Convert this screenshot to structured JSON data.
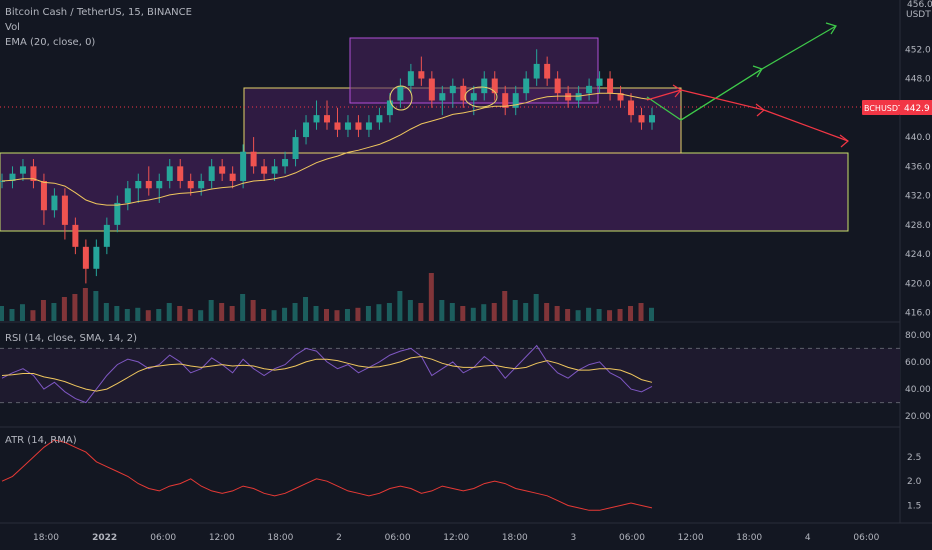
{
  "legend": {
    "symbol_line": "Bitcoin Cash / TetherUS, 15, BINANCE",
    "vol_label": "Vol",
    "ema_label": "EMA (20, close, 0)"
  },
  "price_axis": {
    "currency": "USDT",
    "ticks": [
      "452.0",
      "448.0",
      "444.0",
      "440.0",
      "436.0",
      "432.0",
      "428.0",
      "424.0",
      "420.0",
      "416.0"
    ],
    "top_partial": "456.0"
  },
  "price_badge": {
    "symbol": "BCHUSDT",
    "value": "442.9"
  },
  "rsi": {
    "title": "RSI (14, close, SMA, 14, 2)",
    "ticks": [
      "80.00",
      "60.00",
      "40.00",
      "20.00"
    ],
    "upper_band": 70,
    "lower_band": 30
  },
  "atr": {
    "title": "ATR (14, RMA)",
    "ticks": [
      "2.5",
      "2.0",
      "1.5"
    ]
  },
  "time_axis": {
    "labels": [
      "18:00",
      "2022",
      "06:00",
      "12:00",
      "18:00",
      "2",
      "06:00",
      "12:00",
      "18:00",
      "3",
      "06:00",
      "12:00",
      "18:00",
      "4",
      "06:00"
    ]
  },
  "colors": {
    "background": "#131722",
    "up": "#26a69a",
    "down": "#ef5350",
    "ema": "#f0c75e",
    "rsi": "#7e57c2",
    "rsi_ma": "#f0c75e",
    "atr": "#e53935",
    "zone_fill": "#3a1d4d",
    "zone_border": "#c8e06a",
    "range_border": "#b04fd6",
    "arrow_up": "#3ec94a",
    "arrow_down": "#f23645",
    "badge": "#f23645"
  },
  "chart_data": {
    "type": "candlestick",
    "x_range": [
      "2022-01-01 15:00",
      "2022-01-04 07:00"
    ],
    "y_range": [
      415,
      456
    ],
    "candles": [
      [
        434,
        435,
        433,
        434
      ],
      [
        434,
        436,
        433,
        435
      ],
      [
        435,
        437,
        434,
        436
      ],
      [
        436,
        437,
        433,
        434
      ],
      [
        434,
        435,
        428,
        430
      ],
      [
        430,
        433,
        429,
        432
      ],
      [
        432,
        433,
        426,
        428
      ],
      [
        428,
        429,
        424,
        425
      ],
      [
        425,
        426,
        420,
        422
      ],
      [
        422,
        426,
        421,
        425
      ],
      [
        425,
        429,
        424,
        428
      ],
      [
        428,
        432,
        427,
        431
      ],
      [
        431,
        434,
        430,
        433
      ],
      [
        433,
        435,
        431,
        434
      ],
      [
        434,
        436,
        432,
        433
      ],
      [
        433,
        435,
        431,
        434
      ],
      [
        434,
        437,
        433,
        436
      ],
      [
        436,
        437,
        433,
        434
      ],
      [
        434,
        435,
        432,
        433
      ],
      [
        433,
        435,
        432,
        434
      ],
      [
        434,
        437,
        433,
        436
      ],
      [
        436,
        437,
        434,
        435
      ],
      [
        435,
        436,
        433,
        434
      ],
      [
        434,
        439,
        433,
        438
      ],
      [
        438,
        440,
        435,
        436
      ],
      [
        436,
        437,
        434,
        435
      ],
      [
        435,
        437,
        434,
        436
      ],
      [
        436,
        438,
        435,
        437
      ],
      [
        437,
        441,
        436,
        440
      ],
      [
        440,
        443,
        439,
        442
      ],
      [
        442,
        445,
        441,
        443
      ],
      [
        443,
        445,
        441,
        442
      ],
      [
        442,
        444,
        440,
        441
      ],
      [
        441,
        443,
        440,
        442
      ],
      [
        442,
        443,
        440,
        441
      ],
      [
        441,
        443,
        440,
        442
      ],
      [
        442,
        444,
        441,
        443
      ],
      [
        443,
        446,
        442,
        445
      ],
      [
        445,
        448,
        444,
        447
      ],
      [
        447,
        450,
        446,
        449
      ],
      [
        449,
        451,
        447,
        448
      ],
      [
        448,
        449,
        444,
        445
      ],
      [
        445,
        447,
        443,
        446
      ],
      [
        446,
        448,
        444,
        447
      ],
      [
        447,
        448,
        444,
        445
      ],
      [
        445,
        447,
        443,
        446
      ],
      [
        446,
        449,
        445,
        448
      ],
      [
        448,
        449,
        445,
        446
      ],
      [
        446,
        447,
        443,
        444
      ],
      [
        444,
        447,
        443,
        446
      ],
      [
        446,
        449,
        445,
        448
      ],
      [
        448,
        452,
        447,
        450
      ],
      [
        450,
        451,
        447,
        448
      ],
      [
        448,
        449,
        445,
        446
      ],
      [
        446,
        447,
        444,
        445
      ],
      [
        445,
        447,
        444,
        446
      ],
      [
        446,
        448,
        445,
        447
      ],
      [
        447,
        449,
        446,
        448
      ],
      [
        448,
        449,
        445,
        446
      ],
      [
        446,
        447,
        444,
        445
      ],
      [
        445,
        446,
        442,
        443
      ],
      [
        443,
        444,
        441,
        442
      ],
      [
        442,
        444,
        441,
        443
      ]
    ],
    "ema": [
      434,
      434.1,
      434.3,
      434.3,
      433.8,
      433.7,
      433.3,
      432.4,
      431.4,
      430.9,
      430.7,
      430.7,
      430.9,
      431.2,
      431.4,
      431.7,
      432.1,
      432.3,
      432.4,
      432.6,
      432.9,
      433.1,
      433.2,
      433.7,
      434,
      434.1,
      434.3,
      434.6,
      435.1,
      435.8,
      436.5,
      437,
      437.4,
      437.9,
      438.2,
      438.6,
      439,
      439.6,
      440.3,
      441.1,
      441.8,
      442.2,
      442.6,
      443.1,
      443.3,
      443.6,
      444,
      444.2,
      444.2,
      444.4,
      444.7,
      445.2,
      445.5,
      445.6,
      445.6,
      445.6,
      445.8,
      446,
      446,
      445.9,
      445.6,
      445.3,
      445.1
    ],
    "rsi": [
      48,
      52,
      55,
      50,
      40,
      45,
      38,
      33,
      30,
      40,
      50,
      58,
      62,
      60,
      55,
      58,
      65,
      60,
      52,
      55,
      63,
      58,
      52,
      62,
      55,
      50,
      55,
      58,
      65,
      70,
      68,
      60,
      55,
      58,
      52,
      56,
      60,
      65,
      68,
      70,
      64,
      50,
      55,
      60,
      52,
      56,
      64,
      58,
      48,
      56,
      64,
      72,
      60,
      52,
      48,
      54,
      58,
      60,
      52,
      48,
      40,
      38,
      42
    ],
    "rsi_ma": [
      50,
      50.5,
      51.5,
      51.5,
      49,
      47.5,
      45.5,
      42.5,
      40,
      38.5,
      40,
      44,
      48.5,
      53,
      56,
      57,
      58,
      58.5,
      57,
      56,
      57,
      58,
      57,
      57.5,
      57,
      55,
      54,
      55,
      57,
      60,
      62,
      62,
      61,
      59,
      57,
      56,
      56.5,
      58,
      60,
      63,
      64,
      62,
      59,
      57,
      56,
      56,
      57,
      57.5,
      56,
      55,
      56,
      59,
      61,
      59,
      56,
      54,
      54,
      55,
      55,
      54,
      51,
      47,
      45
    ],
    "atr": [
      2.0,
      2.1,
      2.3,
      2.5,
      2.7,
      2.85,
      2.8,
      2.7,
      2.6,
      2.4,
      2.3,
      2.2,
      2.1,
      1.95,
      1.85,
      1.8,
      1.9,
      1.95,
      2.05,
      1.9,
      1.8,
      1.75,
      1.8,
      1.9,
      1.85,
      1.75,
      1.7,
      1.75,
      1.85,
      1.95,
      2.05,
      2.0,
      1.9,
      1.8,
      1.75,
      1.7,
      1.75,
      1.85,
      1.9,
      1.85,
      1.75,
      1.8,
      1.9,
      1.85,
      1.8,
      1.85,
      1.95,
      2.0,
      1.95,
      1.85,
      1.8,
      1.75,
      1.7,
      1.6,
      1.5,
      1.45,
      1.4,
      1.4,
      1.45,
      1.5,
      1.55,
      1.5,
      1.45
    ],
    "volume": [
      0.25,
      0.2,
      0.28,
      0.18,
      0.35,
      0.3,
      0.4,
      0.45,
      0.55,
      0.5,
      0.3,
      0.25,
      0.2,
      0.22,
      0.18,
      0.2,
      0.3,
      0.25,
      0.2,
      0.18,
      0.35,
      0.3,
      0.25,
      0.45,
      0.35,
      0.2,
      0.18,
      0.22,
      0.3,
      0.4,
      0.25,
      0.2,
      0.18,
      0.2,
      0.22,
      0.25,
      0.28,
      0.3,
      0.5,
      0.35,
      0.3,
      0.8,
      0.35,
      0.3,
      0.25,
      0.22,
      0.28,
      0.3,
      0.5,
      0.35,
      0.3,
      0.45,
      0.3,
      0.25,
      0.2,
      0.18,
      0.22,
      0.2,
      0.18,
      0.2,
      0.25,
      0.3,
      0.22
    ]
  }
}
